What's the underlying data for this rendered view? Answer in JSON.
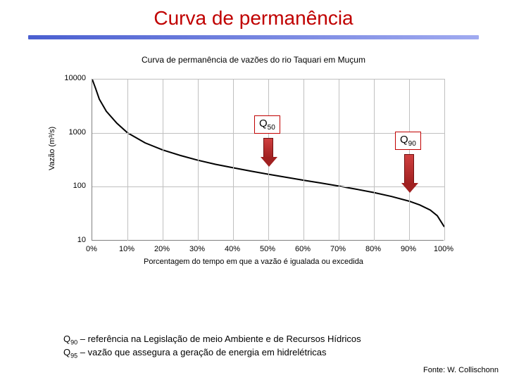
{
  "title": "Curva de permanência",
  "chart": {
    "title": "Curva de permanência de vazões do rio Taquari em Muçum",
    "ylabel": "Vazão (m³/s)",
    "xlabel": "Porcentagem do tempo em que a vazão é igualada ou excedida",
    "ylim": [
      10,
      10000
    ],
    "yscale": "log",
    "yticks": [
      10,
      100,
      1000,
      10000
    ],
    "yticklabels": [
      "10",
      "100",
      "1000",
      "10000"
    ],
    "xlim": [
      0,
      100
    ],
    "xticks": [
      0,
      10,
      20,
      30,
      40,
      50,
      60,
      70,
      80,
      90,
      100
    ],
    "xticklabels": [
      "0%",
      "10%",
      "20%",
      "30%",
      "40%",
      "50%",
      "60%",
      "70%",
      "80%",
      "90%",
      "100%"
    ],
    "grid_color": "#c0c0c0",
    "axis_color": "#808080",
    "background_color": "#ffffff",
    "line_color": "#000000",
    "line_width": 2,
    "fontsize_labels": 11,
    "fontsize_title": 12,
    "series": {
      "x": [
        0,
        1,
        2,
        4,
        7,
        10,
        15,
        20,
        25,
        30,
        35,
        40,
        45,
        50,
        55,
        60,
        65,
        70,
        75,
        80,
        85,
        90,
        93,
        96,
        98,
        100
      ],
      "y": [
        9800,
        6500,
        4200,
        2500,
        1500,
        1000,
        650,
        480,
        380,
        310,
        260,
        225,
        195,
        170,
        150,
        132,
        117,
        103,
        90,
        78,
        66,
        54,
        46,
        37,
        29,
        18
      ]
    },
    "annotations": {
      "q50": {
        "label_main": "Q",
        "label_sub": "50",
        "box_border": "#c00000",
        "arrow_fill": "#b02020",
        "x_percent": 50,
        "arrow_top_y": 800,
        "arrow_bottom_y": 230
      },
      "q90": {
        "label_main": "Q",
        "label_sub": "90",
        "box_border": "#c00000",
        "arrow_fill": "#b02020",
        "x_percent": 90,
        "arrow_top_y": 400,
        "arrow_bottom_y": 75
      }
    }
  },
  "footer": {
    "line1_pre": "Q",
    "line1_sub": "90",
    "line1_post": " – referência na Legislação de meio Ambiente e de Recursos Hídricos",
    "line2_pre": "Q",
    "line2_sub": "95",
    "line2_post": " – vazão que assegura a geração de energia em hidrelétricas"
  },
  "source": "Fonte: W. Collischonn"
}
